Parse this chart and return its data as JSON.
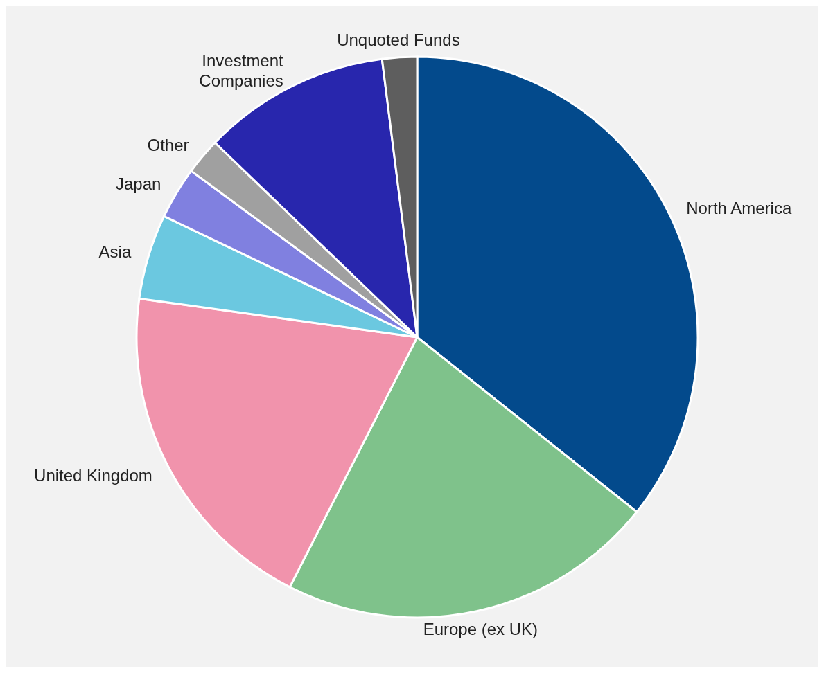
{
  "chart_data": {
    "type": "pie",
    "categories": [
      "North America",
      "Europe (ex UK)",
      "United Kingdom",
      "Asia",
      "Japan",
      "Other",
      "Investment Companies",
      "Unquoted Funds"
    ],
    "values": [
      35.7,
      21.8,
      19.7,
      4.9,
      3.0,
      2.1,
      10.8,
      2.0
    ],
    "colors": [
      "#034a8c",
      "#7fc28b",
      "#f193ac",
      "#6bc8e0",
      "#8080e0",
      "#a0a0a0",
      "#2826ad",
      "#5e5e5e"
    ],
    "legend": false
  }
}
